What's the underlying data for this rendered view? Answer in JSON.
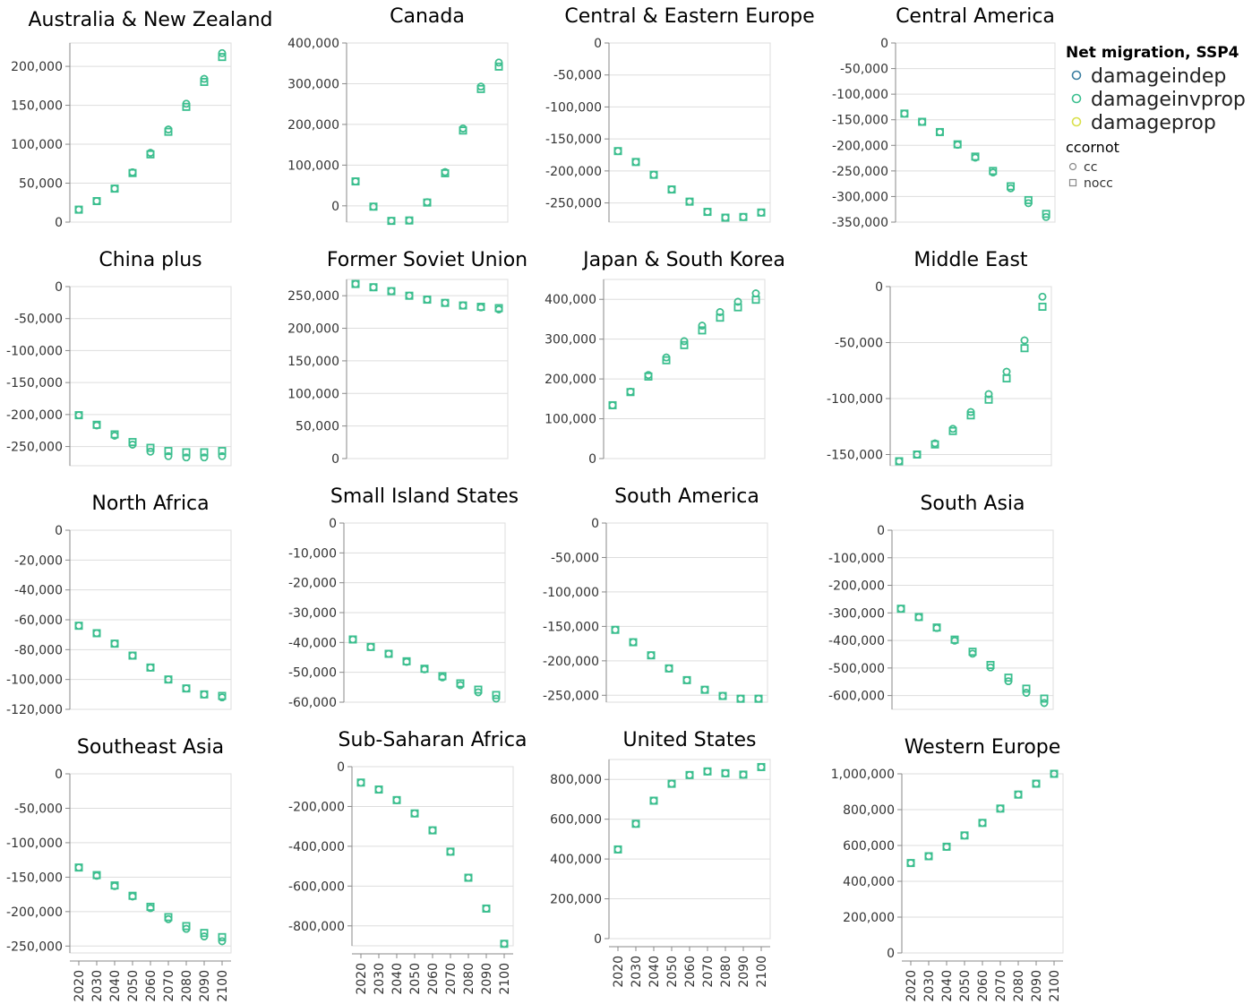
{
  "chart_data": {
    "type": "scatter",
    "x": [
      "2020",
      "2030",
      "2040",
      "2050",
      "2060",
      "2070",
      "2080",
      "2090",
      "2100"
    ],
    "legend": {
      "title": "Net migration, SSP4",
      "placement": "top-right",
      "series": [
        {
          "name": "damageindep",
          "color": "#3a7ea1"
        },
        {
          "name": "damageinvprop",
          "color": "#3bbf8f"
        },
        {
          "name": "damageprop",
          "color": "#d9e04a"
        }
      ],
      "shape_title": "ccornot",
      "shapes": [
        {
          "name": "cc",
          "shape": "circle"
        },
        {
          "name": "nocc",
          "shape": "square"
        }
      ]
    },
    "panels": [
      {
        "title": "Australia & New Zealand",
        "ylim": [
          0,
          230000
        ],
        "yticks": [
          0,
          50000,
          100000,
          150000,
          200000
        ],
        "yticklabels": [
          "0",
          "50,000",
          "100,000",
          "150,000",
          "200,000"
        ],
        "cc": [
          16000,
          27000,
          43000,
          64000,
          89000,
          119000,
          152000,
          184000,
          217000
        ],
        "nocc": [
          16000,
          27000,
          43000,
          63000,
          87000,
          116000,
          148000,
          180000,
          212000
        ]
      },
      {
        "title": "Canada",
        "ylim": [
          -40000,
          400000
        ],
        "yticks": [
          0,
          100000,
          200000,
          300000,
          400000
        ],
        "yticklabels": [
          "0",
          "100,000",
          "200,000",
          "300,000",
          "400,000"
        ],
        "cc": [
          60000,
          -2000,
          -37000,
          -36000,
          9000,
          83000,
          190000,
          293000,
          352000
        ],
        "nocc": [
          60000,
          -2000,
          -37000,
          -36000,
          8000,
          80000,
          185000,
          287000,
          342000
        ]
      },
      {
        "title": "Central & Eastern Europe",
        "ylim": [
          -280000,
          0
        ],
        "yticks": [
          0,
          -50000,
          -100000,
          -150000,
          -200000,
          -250000
        ],
        "yticklabels": [
          "0",
          "-50,000",
          "-100,000",
          "-150,000",
          "-200,000",
          "-250,000"
        ],
        "cc": [
          -169000,
          -186000,
          -206000,
          -229000,
          -248000,
          -264000,
          -273000,
          -272000,
          -265000
        ],
        "nocc": [
          -169000,
          -186000,
          -206000,
          -229000,
          -248000,
          -264000,
          -273000,
          -272000,
          -265000
        ]
      },
      {
        "title": "Central America",
        "ylim": [
          -350000,
          0
        ],
        "yticks": [
          0,
          -50000,
          -100000,
          -150000,
          -200000,
          -250000,
          -300000,
          -350000
        ],
        "yticklabels": [
          "0",
          "-50,000",
          "-100,000",
          "-150,000",
          "-200,000",
          "-250,000",
          "-300,000",
          "-350,000"
        ],
        "cc": [
          -138000,
          -154000,
          -174000,
          -199000,
          -224000,
          -253000,
          -284000,
          -313000,
          -340000
        ],
        "nocc": [
          -138000,
          -154000,
          -174000,
          -198000,
          -222000,
          -250000,
          -280000,
          -307000,
          -334000
        ]
      },
      {
        "title": "China plus",
        "ylim": [
          -280000,
          0
        ],
        "yticks": [
          0,
          -50000,
          -100000,
          -150000,
          -200000,
          -250000
        ],
        "yticklabels": [
          "0",
          "-50,000",
          "-100,000",
          "-150,000",
          "-200,000",
          "-250,000"
        ],
        "cc": [
          -201000,
          -217000,
          -233000,
          -247000,
          -258000,
          -265000,
          -267000,
          -267000,
          -265000
        ],
        "nocc": [
          -201000,
          -216000,
          -231000,
          -243000,
          -252000,
          -257000,
          -259000,
          -259000,
          -257000
        ]
      },
      {
        "title": "Former Soviet Union",
        "ylim": [
          0,
          275000
        ],
        "yticks": [
          0,
          50000,
          100000,
          150000,
          200000,
          250000
        ],
        "yticklabels": [
          "0",
          "50,000",
          "100,000",
          "150,000",
          "200,000",
          "250,000"
        ],
        "cc": [
          268000,
          263000,
          257000,
          250000,
          244000,
          239000,
          235000,
          232000,
          229000
        ],
        "nocc": [
          268000,
          263000,
          257000,
          250000,
          244000,
          239000,
          235000,
          233000,
          231000
        ]
      },
      {
        "title": "Japan & South Korea",
        "ylim": [
          0,
          450000
        ],
        "yticks": [
          0,
          100000,
          200000,
          300000,
          400000
        ],
        "yticklabels": [
          "0",
          "100,000",
          "200,000",
          "300,000",
          "400,000"
        ],
        "cc": [
          134000,
          168000,
          210000,
          254000,
          295000,
          334000,
          368000,
          394000,
          415000
        ],
        "nocc": [
          134000,
          167000,
          206000,
          247000,
          285000,
          322000,
          354000,
          380000,
          399000
        ]
      },
      {
        "title": "Middle East",
        "ylim": [
          -160000,
          0
        ],
        "yticks": [
          0,
          -50000,
          -100000,
          -150000
        ],
        "yticklabels": [
          "0",
          "-50,000",
          "-100,000",
          "-150,000"
        ],
        "cc": [
          -156000,
          -150000,
          -140000,
          -127000,
          -112000,
          -96000,
          -76000,
          -48000,
          -9000
        ],
        "nocc": [
          -156000,
          -150000,
          -141000,
          -129000,
          -115000,
          -101000,
          -82000,
          -55000,
          -18000
        ]
      },
      {
        "title": "North Africa",
        "ylim": [
          -120000,
          0
        ],
        "yticks": [
          0,
          -20000,
          -40000,
          -60000,
          -80000,
          -100000,
          -120000
        ],
        "yticklabels": [
          "0",
          "-20,000",
          "-40,000",
          "-60,000",
          "-80,000",
          "-100,000",
          "-120,000"
        ],
        "cc": [
          -64000,
          -69000,
          -76000,
          -84000,
          -92000,
          -100000,
          -106000,
          -110000,
          -112000
        ],
        "nocc": [
          -64000,
          -69000,
          -76000,
          -84000,
          -92000,
          -100000,
          -106000,
          -110000,
          -111000
        ]
      },
      {
        "title": "Small Island States",
        "ylim": [
          -60000,
          0
        ],
        "yticks": [
          0,
          -10000,
          -20000,
          -30000,
          -40000,
          -50000,
          -60000
        ],
        "yticklabels": [
          "0",
          "-10,000",
          "-20,000",
          "-30,000",
          "-40,000",
          "-50,000",
          "-60,000"
        ],
        "cc": [
          -39000,
          -41500,
          -43800,
          -46500,
          -49000,
          -51700,
          -54300,
          -56700,
          -58800
        ],
        "nocc": [
          -39000,
          -41500,
          -43800,
          -46300,
          -48800,
          -51300,
          -53700,
          -55800,
          -57600
        ]
      },
      {
        "title": "South America",
        "ylim": [
          -260000,
          0
        ],
        "yticks": [
          0,
          -50000,
          -100000,
          -150000,
          -200000,
          -250000
        ],
        "yticklabels": [
          "0",
          "-50,000",
          "-100,000",
          "-150,000",
          "-200,000",
          "-250,000"
        ],
        "cc": [
          -155000,
          -173000,
          -192000,
          -211000,
          -228000,
          -242000,
          -251000,
          -255000,
          -255000
        ],
        "nocc": [
          -155000,
          -173000,
          -192000,
          -211000,
          -228000,
          -242000,
          -251000,
          -255000,
          -255000
        ]
      },
      {
        "title": "South Asia",
        "ylim": [
          -650000,
          0
        ],
        "yticks": [
          0,
          -100000,
          -200000,
          -300000,
          -400000,
          -500000,
          -600000
        ],
        "yticklabels": [
          "0",
          "-100,000",
          "-200,000",
          "-300,000",
          "-400,000",
          "-500,000",
          "-600,000"
        ],
        "cc": [
          -285000,
          -316000,
          -355000,
          -401000,
          -448000,
          -498000,
          -548000,
          -590000,
          -627000
        ],
        "nocc": [
          -285000,
          -315000,
          -353000,
          -397000,
          -441000,
          -489000,
          -535000,
          -575000,
          -611000
        ]
      },
      {
        "title": "Southeast Asia",
        "ylim": [
          -260000,
          0
        ],
        "yticks": [
          0,
          -50000,
          -100000,
          -150000,
          -200000,
          -250000
        ],
        "yticklabels": [
          "0",
          "-50,000",
          "-100,000",
          "-150,000",
          "-200,000",
          "-250,000"
        ],
        "cc": [
          -136000,
          -148000,
          -163000,
          -178000,
          -195000,
          -211000,
          -225000,
          -236000,
          -243000
        ],
        "nocc": [
          -136000,
          -147000,
          -162000,
          -177000,
          -193000,
          -208000,
          -221000,
          -231000,
          -237000
        ]
      },
      {
        "title": "Sub-Saharan Africa",
        "ylim": [
          -900000,
          0
        ],
        "yticks": [
          0,
          -200000,
          -400000,
          -600000,
          -800000
        ],
        "yticklabels": [
          "0",
          "-200,000",
          "-400,000",
          "-600,000",
          "-800,000"
        ],
        "cc": [
          -80000,
          -115000,
          -168000,
          -235000,
          -320000,
          -427000,
          -558000,
          -713000,
          -890000
        ],
        "nocc": [
          -80000,
          -115000,
          -168000,
          -235000,
          -320000,
          -427000,
          -558000,
          -713000,
          -890000
        ]
      },
      {
        "title": "United States",
        "ylim": [
          0,
          900000
        ],
        "yticks": [
          0,
          200000,
          400000,
          600000,
          800000
        ],
        "yticklabels": [
          "0",
          "200,000",
          "400,000",
          "600,000",
          "800,000"
        ],
        "cc": [
          448000,
          577000,
          693000,
          778000,
          822000,
          840000,
          831000,
          824000,
          862000
        ],
        "nocc": [
          448000,
          577000,
          693000,
          778000,
          822000,
          840000,
          831000,
          824000,
          862000
        ]
      },
      {
        "title": "Western Europe",
        "ylim": [
          0,
          1000000
        ],
        "yticks": [
          0,
          200000,
          400000,
          600000,
          800000,
          1000000
        ],
        "yticklabels": [
          "0",
          "200,000",
          "400,000",
          "600,000",
          "800,000",
          "1,000,000"
        ],
        "cc": [
          502000,
          540000,
          593000,
          656000,
          726000,
          806000,
          884000,
          945000,
          1000000
        ],
        "nocc": [
          502000,
          540000,
          593000,
          656000,
          726000,
          806000,
          884000,
          945000,
          1000000
        ]
      }
    ]
  }
}
